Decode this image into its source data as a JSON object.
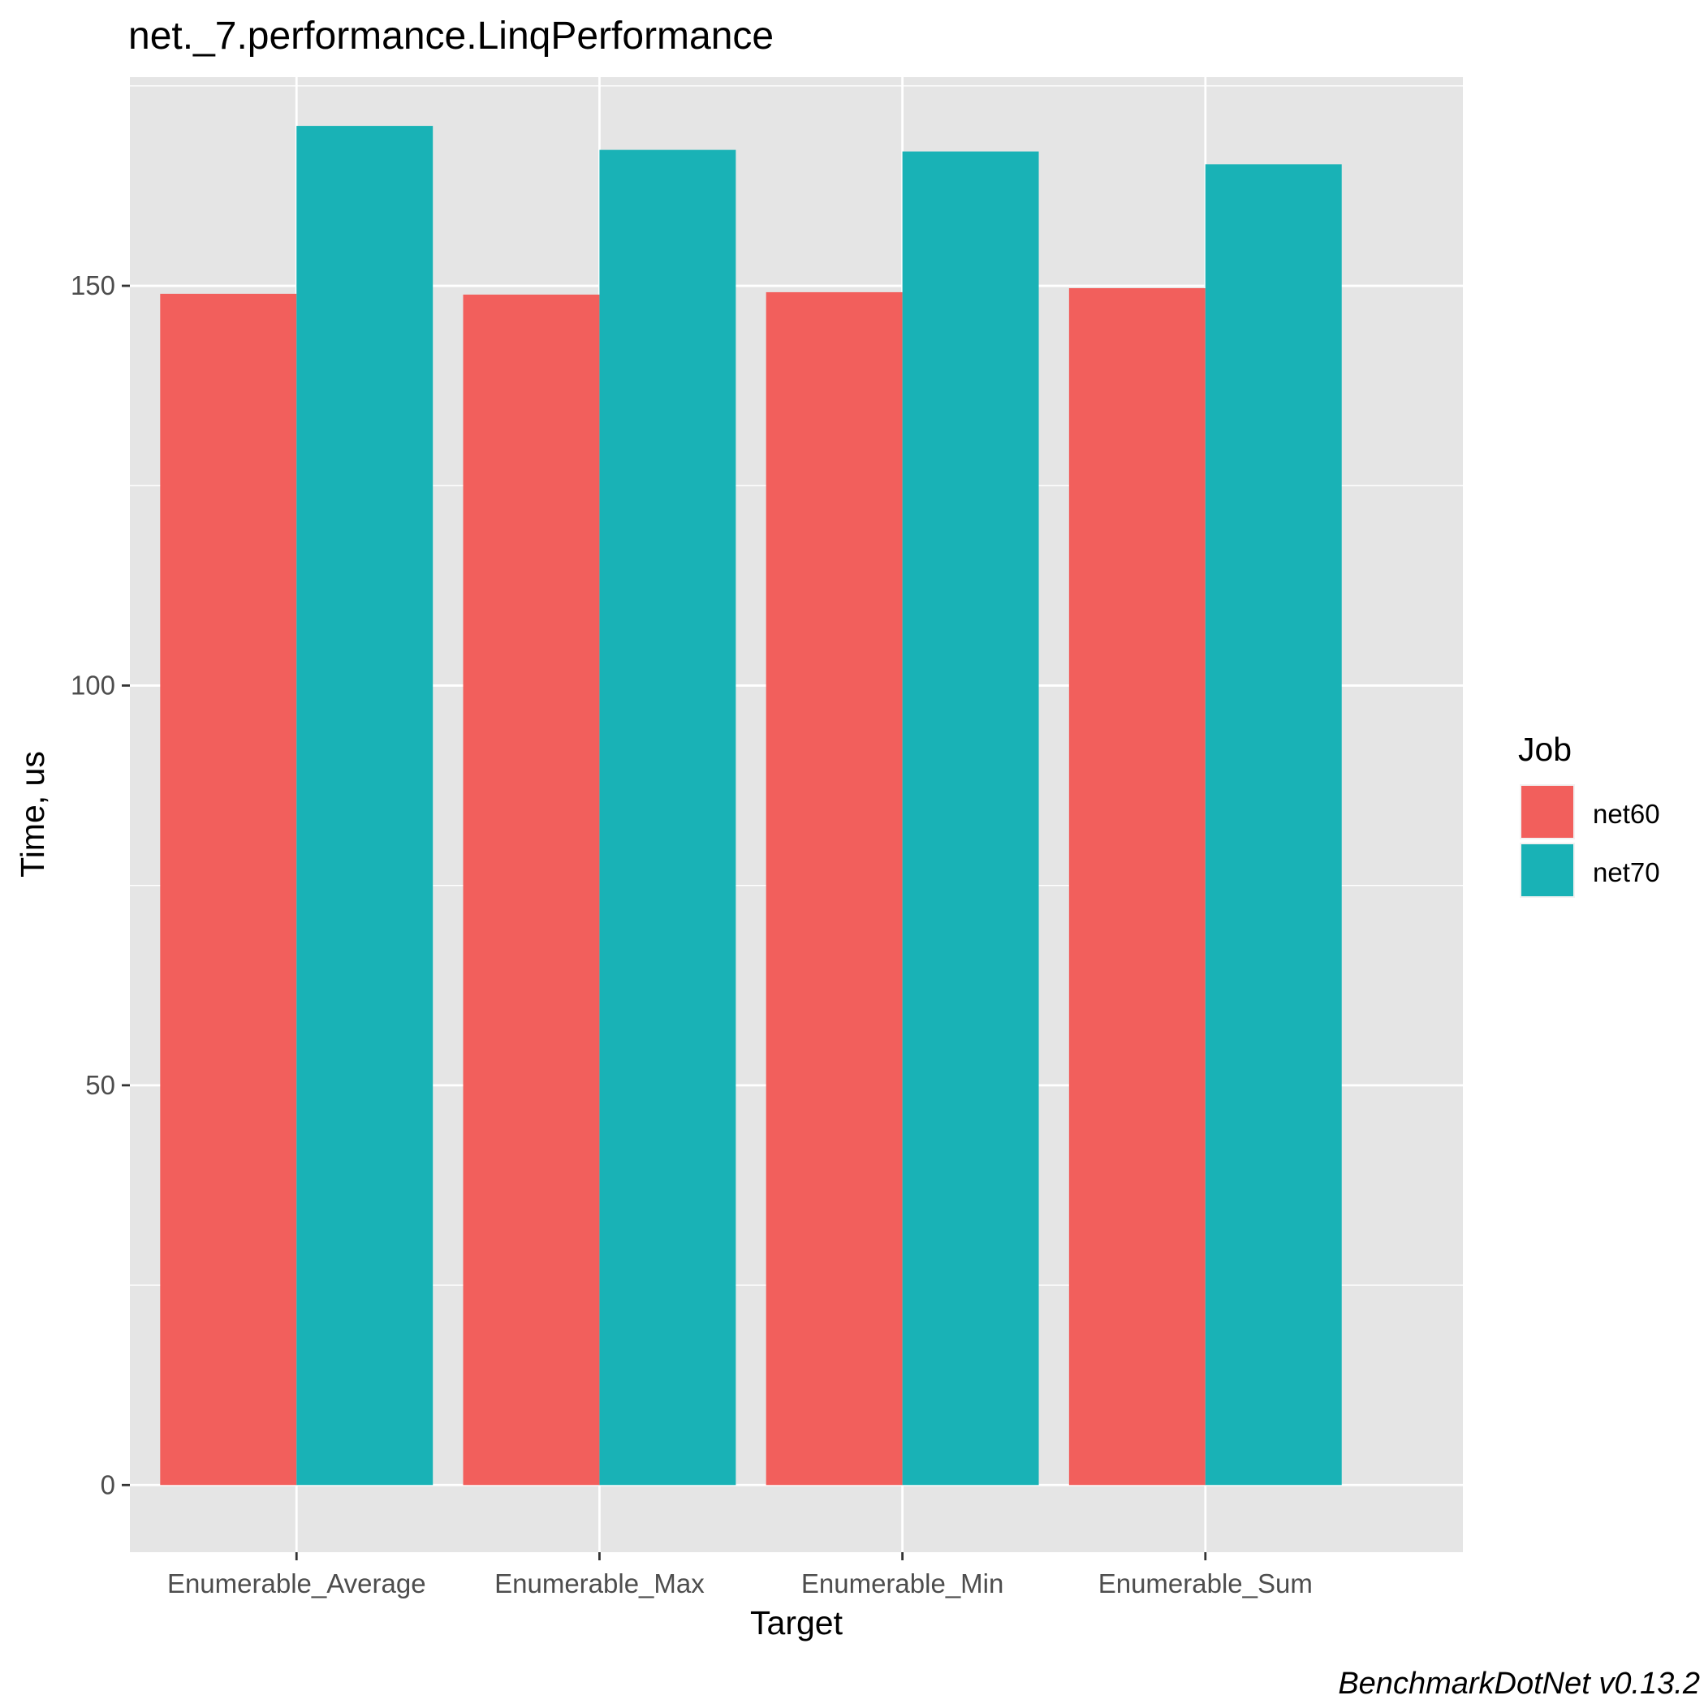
{
  "chart_data": {
    "type": "bar",
    "title": "net._7.performance.LinqPerformance",
    "xlabel": "Target",
    "ylabel": "Time, us",
    "categories": [
      "Enumerable_Average",
      "Enumerable_Max",
      "Enumerable_Min",
      "Enumerable_Sum"
    ],
    "series": [
      {
        "name": "net60",
        "color": "#F25F5C",
        "values": [
          149.0,
          148.9,
          149.2,
          149.7
        ]
      },
      {
        "name": "net70",
        "color": "#19B2B6",
        "values": [
          170.0,
          167.0,
          166.8,
          165.2
        ]
      }
    ],
    "yticks": [
      0,
      50,
      100,
      150
    ],
    "ylim": [
      -8.4,
      176.1
    ],
    "grid": true,
    "legend": {
      "title": "Job",
      "position": "right"
    },
    "caption": "BenchmarkDotNet v0.13.2"
  }
}
